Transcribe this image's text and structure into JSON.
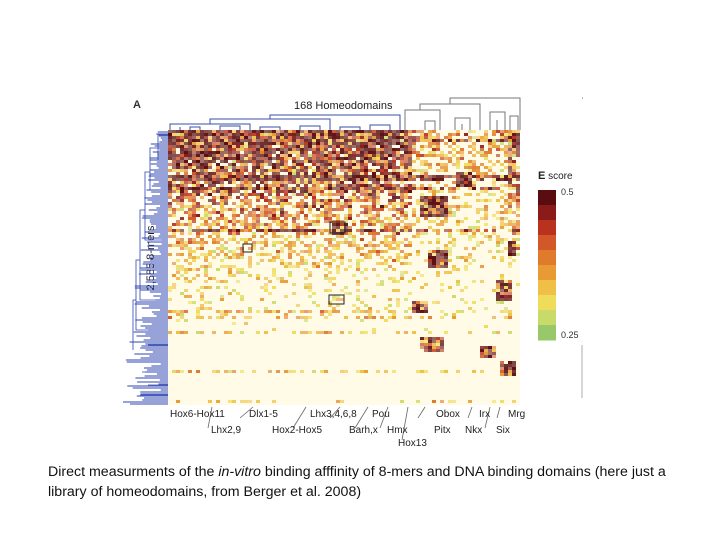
{
  "figure": {
    "panel_label": "A",
    "top_title": "168 Homeodomains",
    "y_axis_title": "2,585 8-mers",
    "legend": {
      "title_bold": "E",
      "title_rest": " score",
      "max": "0.5",
      "min": "0.25",
      "colors": [
        "#5a0d10",
        "#8b1a1a",
        "#b8321e",
        "#d2582a",
        "#e07a2c",
        "#e89a34",
        "#f0bf45",
        "#eedc5a",
        "#c8da6a",
        "#98c86a"
      ]
    },
    "cluster_labels": {
      "row1": [
        "Hox6-Hox11",
        "Dlx1-5",
        "Lhx3,4,6,8",
        "Pou",
        "Obox",
        "Irx",
        "Mrg"
      ],
      "row2": [
        "Lhx2,9",
        "Hox2-Hox5",
        "Barh,x",
        "Hmx",
        "Pitx",
        "Nkx",
        "Six"
      ],
      "row3": [
        "Hox13"
      ]
    }
  },
  "caption": {
    "before": "Direct measurments of the ",
    "italic": "in-vitro",
    "after": " binding afffinity of 8-mers and DNA binding domains (here just a library of homeodomains, from Berger et al. 2008)"
  }
}
